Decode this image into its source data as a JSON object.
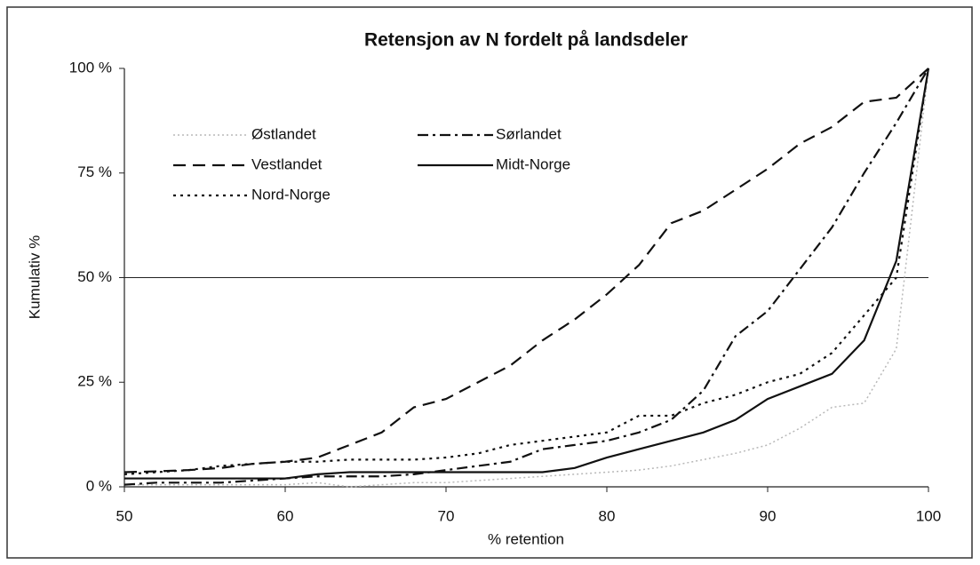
{
  "chart_data": {
    "type": "line",
    "title": "Retensjon av N fordelt på landsdeler",
    "xlabel": "% retention",
    "ylabel": "Kumulativ %",
    "x": [
      50,
      52,
      54,
      56,
      58,
      60,
      62,
      64,
      66,
      68,
      70,
      72,
      74,
      76,
      78,
      80,
      82,
      84,
      86,
      88,
      90,
      92,
      94,
      96,
      98,
      100
    ],
    "series": [
      {
        "name": "Østlandet",
        "color": "#b8b8b8",
        "dash": "2 3",
        "values": [
          0.5,
          0.5,
          0.5,
          0.5,
          0.5,
          0.5,
          1,
          0,
          0.5,
          1,
          1,
          1.5,
          2,
          2.5,
          3,
          3.5,
          4,
          5,
          6.5,
          8,
          10,
          14,
          19,
          20,
          33,
          100
        ]
      },
      {
        "name": "Sørlandet",
        "color": "#111111",
        "dash": "12 5 3 5",
        "values": [
          0.5,
          1,
          1,
          1,
          1.5,
          2,
          2.5,
          2.5,
          2.5,
          3,
          4,
          5,
          6,
          9,
          10,
          11,
          13,
          16,
          23,
          36,
          42,
          52,
          62,
          75,
          87,
          100
        ]
      },
      {
        "name": "Vestlandet",
        "color": "#111111",
        "dash": "14 8",
        "values": [
          3.5,
          3.7,
          4,
          4.5,
          5.5,
          6,
          7,
          10,
          13,
          19,
          21,
          25,
          29,
          35,
          40,
          46,
          53,
          63,
          66,
          71,
          76,
          82,
          86,
          92,
          93,
          100
        ]
      },
      {
        "name": "Midt-Norge",
        "color": "#111111",
        "dash": "none",
        "values": [
          2,
          2,
          2,
          2,
          2,
          2,
          3,
          3.5,
          3.5,
          3.5,
          3.5,
          3.5,
          3.5,
          3.5,
          4.5,
          7,
          9,
          11,
          13,
          16,
          21,
          24,
          27,
          35,
          54,
          100
        ]
      },
      {
        "name": "Nord-Norge",
        "color": "#111111",
        "dash": "3 5",
        "values": [
          3,
          3.5,
          4,
          5,
          5.5,
          6,
          6,
          6.5,
          6.5,
          6.5,
          7,
          8,
          10,
          11,
          12,
          13,
          17,
          17,
          20,
          22,
          25,
          27,
          32,
          41,
          50,
          100
        ]
      }
    ],
    "xlim": [
      50,
      100
    ],
    "xticks": [
      50,
      60,
      70,
      80,
      90,
      100
    ],
    "ylim": [
      0,
      100
    ],
    "yticks": [
      {
        "value": 0,
        "label": "0 %"
      },
      {
        "value": 25,
        "label": "25 %"
      },
      {
        "value": 50,
        "label": "50 %"
      },
      {
        "value": 75,
        "label": "75 %"
      },
      {
        "value": 100,
        "label": "100 %"
      }
    ],
    "hlines": [
      50
    ],
    "legend": "upper left"
  }
}
